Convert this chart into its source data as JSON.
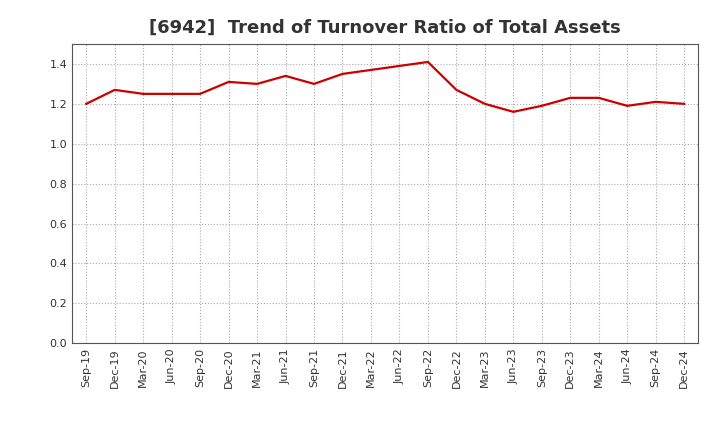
{
  "title": "[6942]  Trend of Turnover Ratio of Total Assets",
  "x_labels": [
    "Sep-19",
    "Dec-19",
    "Mar-20",
    "Jun-20",
    "Sep-20",
    "Dec-20",
    "Mar-21",
    "Jun-21",
    "Sep-21",
    "Dec-21",
    "Mar-22",
    "Jun-22",
    "Sep-22",
    "Dec-22",
    "Mar-23",
    "Jun-23",
    "Sep-23",
    "Dec-23",
    "Mar-24",
    "Jun-24",
    "Sep-24",
    "Dec-24"
  ],
  "values": [
    1.2,
    1.27,
    1.25,
    1.25,
    1.25,
    1.31,
    1.3,
    1.34,
    1.3,
    1.35,
    1.37,
    1.39,
    1.41,
    1.27,
    1.2,
    1.16,
    1.19,
    1.23,
    1.23,
    1.19,
    1.21,
    1.2
  ],
  "line_color": "#cc0000",
  "line_width": 1.6,
  "ylim": [
    0.0,
    1.5
  ],
  "yticks": [
    0.0,
    0.2,
    0.4,
    0.6,
    0.8,
    1.0,
    1.2,
    1.4
  ],
  "bg_color": "#ffffff",
  "plot_bg_color": "#ffffff",
  "grid_color": "#aaaaaa",
  "title_fontsize": 13,
  "tick_fontsize": 8,
  "title_color": "#333333"
}
